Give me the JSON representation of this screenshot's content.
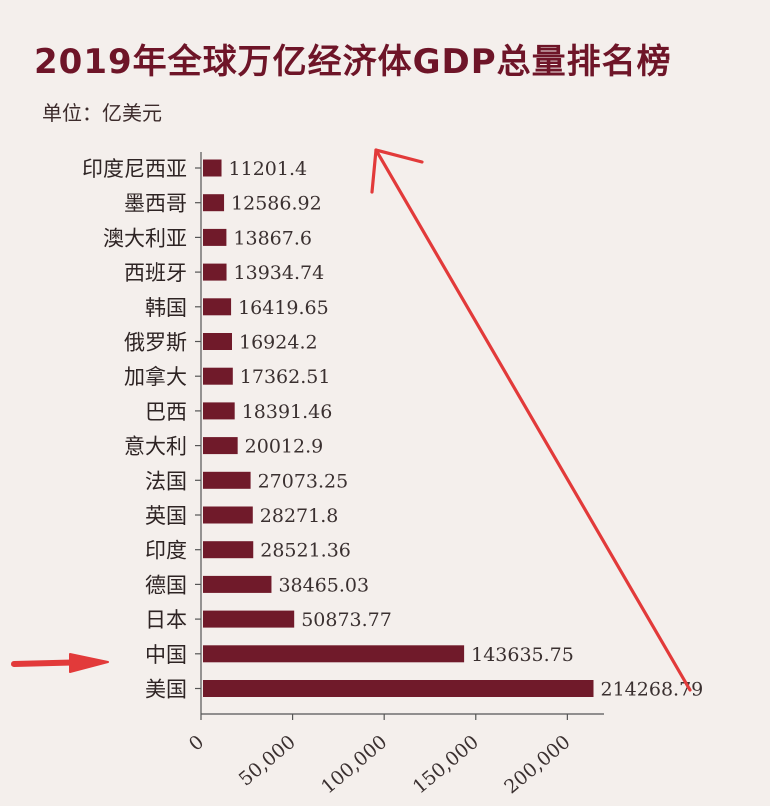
{
  "title": "2019年全球万亿经济体GDP总量排名榜",
  "unit": "单位：亿美元",
  "colors": {
    "bar": "#701a2a",
    "annotation": "#e23a3a",
    "axis": "#555555",
    "background": "#f4efec"
  },
  "chart_data": {
    "type": "bar",
    "orientation": "horizontal",
    "title": "2019年全球万亿经济体GDP总量排名榜",
    "subtitle": "单位：亿美元",
    "categories": [
      "印度尼西亚",
      "墨西哥",
      "澳大利亚",
      "西班牙",
      "韩国",
      "俄罗斯",
      "加拿大",
      "巴西",
      "意大利",
      "法国",
      "英国",
      "印度",
      "德国",
      "日本",
      "中国",
      "美国"
    ],
    "values": [
      11201.4,
      12586.92,
      13867.6,
      13934.74,
      16419.65,
      16924.2,
      17362.51,
      18391.46,
      20012.9,
      27073.25,
      28271.8,
      28521.36,
      38465.03,
      50873.77,
      143635.75,
      214268.79
    ],
    "value_labels": [
      "11201.4",
      "12586.92",
      "13867.6",
      "13934.74",
      "16419.65",
      "16924.2",
      "17362.51",
      "18391.46",
      "20012.9",
      "27073.25",
      "28271.8",
      "28521.36",
      "38465.03",
      "50873.77",
      "143635.75",
      "214268.79"
    ],
    "xticks": [
      0,
      50000,
      100000,
      150000,
      200000
    ],
    "xtick_labels": [
      "0",
      "50,000",
      "100,000",
      "150,000",
      "200,000"
    ],
    "xlim": [
      0,
      220000
    ],
    "highlight_category": "中国",
    "grid": false
  }
}
